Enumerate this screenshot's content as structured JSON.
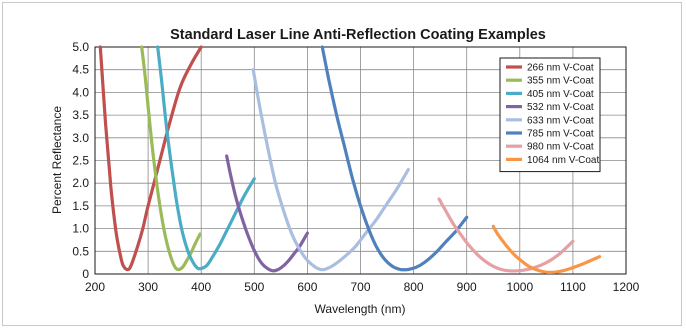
{
  "chart_data": {
    "type": "line",
    "title": "Standard Laser Line Anti-Reflection Coating Examples",
    "xlabel": "Wavelength (nm)",
    "ylabel": "Percent Reflectance",
    "xlim": [
      200,
      1200
    ],
    "ylim": [
      0,
      5
    ],
    "xticks": [
      "200",
      "300",
      "400",
      "500",
      "600",
      "700",
      "800",
      "900",
      "1000",
      "1100",
      "1200"
    ],
    "yticks": [
      "0",
      "0.5",
      "1.0",
      "1.5",
      "2.0",
      "2.5",
      "3.0",
      "3.5",
      "4.0",
      "4.5",
      "5.0"
    ],
    "grid": true,
    "legend_position": "top-right",
    "series": [
      {
        "name": "266 nm V-Coat",
        "color": "#c0504d",
        "x": [
          210,
          220,
          230,
          240,
          250,
          255,
          260,
          265,
          270,
          280,
          290,
          300,
          320,
          340,
          360,
          380,
          400
        ],
        "y": [
          5.0,
          3.3,
          1.9,
          0.9,
          0.3,
          0.15,
          0.1,
          0.12,
          0.25,
          0.6,
          1.0,
          1.5,
          2.4,
          3.3,
          4.1,
          4.6,
          5.0
        ]
      },
      {
        "name": "355 nm V-Coat",
        "color": "#9bbb59",
        "x": [
          288,
          295,
          305,
          315,
          325,
          335,
          345,
          352,
          358,
          365,
          372,
          380,
          390,
          398
        ],
        "y": [
          5.0,
          4.3,
          3.1,
          2.1,
          1.3,
          0.7,
          0.3,
          0.13,
          0.1,
          0.15,
          0.28,
          0.45,
          0.7,
          0.88
        ]
      },
      {
        "name": "405 nm V-Coat",
        "color": "#4bacc6",
        "x": [
          318,
          325,
          335,
          345,
          355,
          365,
          375,
          385,
          393,
          400,
          410,
          420,
          435,
          450,
          465,
          480,
          500
        ],
        "y": [
          5.0,
          4.3,
          3.2,
          2.3,
          1.5,
          0.9,
          0.5,
          0.25,
          0.13,
          0.12,
          0.18,
          0.35,
          0.65,
          1.0,
          1.35,
          1.7,
          2.1
        ]
      },
      {
        "name": "532 nm V-Coat",
        "color": "#8064a2",
        "x": [
          448,
          455,
          465,
          475,
          485,
          495,
          505,
          515,
          525,
          535,
          545,
          555,
          565,
          575,
          585,
          600
        ],
        "y": [
          2.6,
          2.2,
          1.7,
          1.3,
          0.95,
          0.65,
          0.4,
          0.22,
          0.12,
          0.07,
          0.1,
          0.18,
          0.3,
          0.45,
          0.6,
          0.9
        ]
      },
      {
        "name": "633 nm V-Coat",
        "color": "#a9bfe0",
        "x": [
          498,
          510,
          525,
          540,
          555,
          570,
          585,
          600,
          615,
          625,
          635,
          650,
          670,
          690,
          710,
          730,
          750,
          770,
          790
        ],
        "y": [
          4.5,
          3.7,
          2.8,
          2.0,
          1.4,
          0.9,
          0.55,
          0.3,
          0.15,
          0.1,
          0.11,
          0.2,
          0.38,
          0.6,
          0.9,
          1.2,
          1.55,
          1.9,
          2.3
        ]
      },
      {
        "name": "785 nm V-Coat",
        "color": "#4f81bd",
        "x": [
          628,
          640,
          655,
          670,
          685,
          700,
          715,
          730,
          745,
          760,
          775,
          790,
          805,
          820,
          840,
          860,
          880,
          900
        ],
        "y": [
          5.0,
          4.3,
          3.5,
          2.8,
          2.1,
          1.5,
          1.0,
          0.6,
          0.33,
          0.17,
          0.1,
          0.1,
          0.15,
          0.25,
          0.45,
          0.7,
          0.95,
          1.25
        ]
      },
      {
        "name": "980 nm V-Coat",
        "color": "#e6a0a3",
        "x": [
          848,
          860,
          875,
          890,
          905,
          920,
          935,
          950,
          965,
          980,
          995,
          1010,
          1030,
          1050,
          1070,
          1085,
          1100
        ],
        "y": [
          1.65,
          1.4,
          1.1,
          0.85,
          0.62,
          0.43,
          0.28,
          0.17,
          0.1,
          0.07,
          0.07,
          0.09,
          0.15,
          0.25,
          0.4,
          0.55,
          0.72
        ]
      },
      {
        "name": "1064 nm V-Coat",
        "color": "#f79646",
        "x": [
          950,
          960,
          975,
          990,
          1005,
          1020,
          1035,
          1050,
          1065,
          1080,
          1095,
          1110,
          1125,
          1140,
          1150
        ],
        "y": [
          1.05,
          0.85,
          0.62,
          0.42,
          0.27,
          0.15,
          0.08,
          0.04,
          0.04,
          0.07,
          0.12,
          0.18,
          0.25,
          0.33,
          0.38
        ]
      }
    ]
  }
}
